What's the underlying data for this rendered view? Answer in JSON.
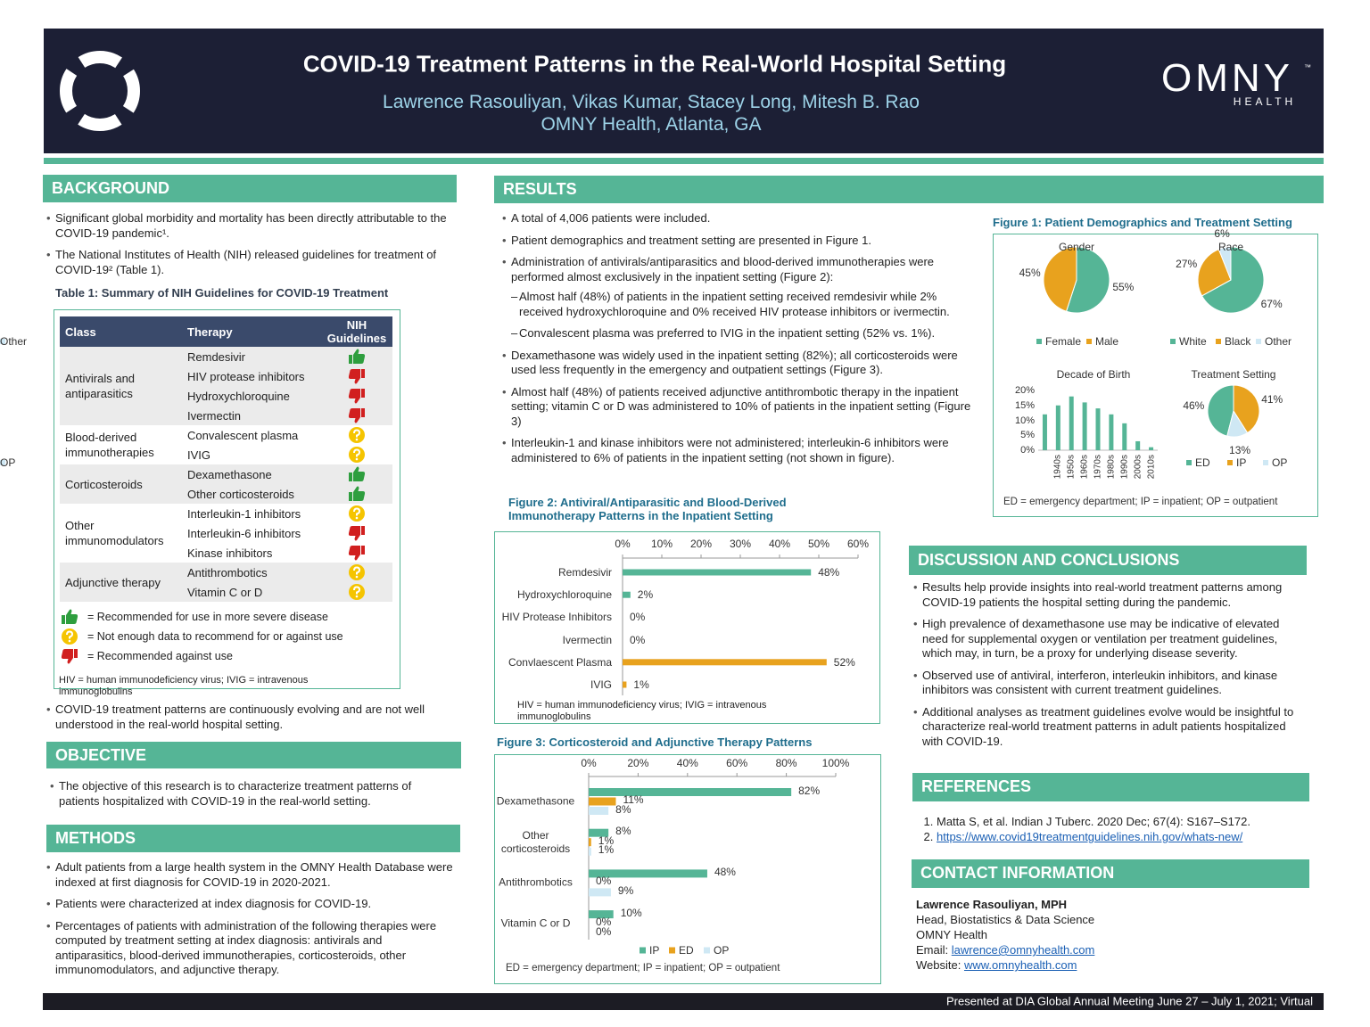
{
  "header": {
    "title": "COVID-19 Treatment Patterns in the Real-World Hospital Setting",
    "authors": "Lawrence Rasouliyan, Vikas Kumar, Stacey Long, Mitesh B. Rao",
    "affiliation": "OMNY Health, Atlanta, GA",
    "logo": {
      "name": "OMNY",
      "trademark": "™",
      "sub": "HEALTH"
    }
  },
  "background": {
    "heading": "BACKGROUND",
    "bullets": [
      "Significant global morbidity and mortality has been directly attributable to the COVID-19 pandemic¹.",
      "The National Institutes of Health (NIH) released guidelines for treatment of COVID-19² (Table 1)."
    ],
    "table_caption": "Table 1: Summary of NIH Guidelines for COVID-19 Treatment",
    "table": {
      "columns": [
        "Class",
        "Therapy",
        "NIH Guidelines"
      ],
      "groups": [
        {
          "class": "Antivirals and antiparasitics",
          "rows": [
            {
              "therapy": "Remdesivir",
              "rating": "up"
            },
            {
              "therapy": "HIV protease inhibitors",
              "rating": "down"
            },
            {
              "therapy": "Hydroxychloroquine",
              "rating": "down"
            },
            {
              "therapy": "Ivermectin",
              "rating": "down"
            }
          ]
        },
        {
          "class": "Blood-derived immunotherapies",
          "rows": [
            {
              "therapy": "Convalescent plasma",
              "rating": "question"
            },
            {
              "therapy": "IVIG",
              "rating": "question"
            }
          ]
        },
        {
          "class": "Corticosteroids",
          "rows": [
            {
              "therapy": "Dexamethasone",
              "rating": "up"
            },
            {
              "therapy": "Other corticosteroids",
              "rating": "up"
            }
          ]
        },
        {
          "class": "Other immunomodulators",
          "rows": [
            {
              "therapy": "Interleukin-1 inhibitors",
              "rating": "question"
            },
            {
              "therapy": "Interleukin-6 inhibitors",
              "rating": "down"
            },
            {
              "therapy": "Kinase inhibitors",
              "rating": "down"
            }
          ]
        },
        {
          "class": "Adjunctive therapy",
          "rows": [
            {
              "therapy": "Antithrombotics",
              "rating": "question"
            },
            {
              "therapy": "Vitamin C or D",
              "rating": "question"
            }
          ]
        }
      ]
    },
    "legend": [
      {
        "icon": "up",
        "text": "= Recommended for use in more severe disease"
      },
      {
        "icon": "question",
        "text": "= Not enough data to recommend for or against use"
      },
      {
        "icon": "down",
        "text": "= Recommended against use"
      }
    ],
    "note": "HIV = human immunodeficiency virus; IVIG = intravenous immunoglobulins",
    "bullets_after": [
      "COVID-19 treatment patterns are continuously evolving and are not well understood in the real-world hospital setting."
    ]
  },
  "objective": {
    "heading": "OBJECTIVE",
    "bullets": [
      "The objective of this research is to characterize treatment patterns of patients hospitalized with COVID-19 in the real-world setting."
    ]
  },
  "methods": {
    "heading": "METHODS",
    "bullets": [
      "Adult patients from a large health system in the OMNY Health Database were indexed at first diagnosis for COVID-19 in 2020-2021.",
      "Patients were characterized at index diagnosis for COVID-19.",
      "Percentages of patients with administration of the following therapies were computed by treatment setting at index diagnosis: antivirals and antiparasitics, blood-derived immunotherapies, corticosteroids, other immunomodulators, and adjunctive therapy."
    ]
  },
  "results": {
    "heading": "RESULTS",
    "bullets": [
      "A total of 4,006 patients were included.",
      "Patient demographics and treatment setting are presented in Figure 1.",
      {
        "text": "Administration of antivirals/antiparasitics and blood-derived immunotherapies were performed almost exclusively in the inpatient setting (Figure 2):",
        "subs": [
          "Almost half (48%) of patients in the inpatient setting received remdesivir while 2% received hydroxychloroquine and 0% received HIV protease inhibitors or ivermectin.",
          "Convalescent plasma was preferred to IVIG in the inpatient setting (52% vs. 1%)."
        ]
      },
      "Dexamethasone was widely used in the inpatient setting (82%); all corticosteroids were used less frequently in the emergency and outpatient settings (Figure 3).",
      "Almost half (48%) of patients received adjunctive antithrombotic therapy in the inpatient setting; vitamin C or D was administered to 10% of patients in the inpatient setting (Figure 3)",
      "Interleukin-1 and kinase inhibitors were not administered; interleukin-6 inhibitors were administered to 6% of patients in the inpatient setting (not shown in figure)."
    ]
  },
  "figure1": {
    "caption": "Figure 1: Patient Demographics and Treatment Setting",
    "charts": [
      {
        "type": "pie",
        "title": "Gender",
        "categories": [
          "Female",
          "Male"
        ],
        "values": [
          55,
          45
        ],
        "value_labels": [
          "55%",
          "45%"
        ],
        "colors": [
          "#55b596",
          "#e8a21e"
        ]
      },
      {
        "type": "pie",
        "title": "Race",
        "categories": [
          "White",
          "Black",
          "Other"
        ],
        "values": [
          67,
          27,
          6
        ],
        "value_labels": [
          "67%",
          "27%",
          "6%"
        ],
        "colors": [
          "#55b596",
          "#e8a21e",
          "#cfe8f4"
        ]
      },
      {
        "type": "bar",
        "title": "Decade of Birth",
        "categories": [
          null,
          "1940s",
          "1950s",
          "1960s",
          "1970s",
          "1980s",
          "1990s",
          "2000s",
          "2010s"
        ],
        "values": [
          12,
          15,
          18,
          16,
          14,
          12,
          9,
          3,
          1
        ],
        "color": "#55b596",
        "ylim": [
          0,
          20
        ],
        "yticks": [
          {
            "value": 0,
            "label": "0%"
          },
          {
            "value": 5,
            "label": "5%"
          },
          {
            "value": 10,
            "label": "10%"
          },
          {
            "value": 15,
            "label": "15%"
          },
          {
            "value": 20,
            "label": "20%"
          }
        ]
      },
      {
        "type": "pie",
        "title": "Treatment Setting",
        "categories": [
          "ED",
          "IP",
          "OP"
        ],
        "values": [
          46,
          41,
          13
        ],
        "value_labels": [
          "46%",
          "41%",
          "13%"
        ],
        "colors": [
          "#55b596",
          "#e8a21e",
          "#cfe8f4"
        ]
      }
    ],
    "note": "ED = emergency department; IP = inpatient; OP = outpatient"
  },
  "figure2": {
    "caption": "Figure 2: Antiviral/Antiparasitic and Blood-Derived Immunotherapy Patterns in the Inpatient Setting",
    "chart": {
      "type": "hbar",
      "categories": [
        "Remdesivir",
        "Hydroxychloroquine",
        "HIV Protease Inhibitors",
        "Ivermectin",
        "Convlaescent Plasma",
        "IVIG"
      ],
      "values": [
        48,
        2,
        0,
        0,
        52,
        1
      ],
      "value_labels": [
        "48%",
        "2%",
        "0%",
        "0%",
        "52%",
        "1%"
      ],
      "colors": [
        "#55b596",
        "#55b596",
        "#55b596",
        "#55b596",
        "#e8a21e",
        "#e8a21e"
      ],
      "xlim": [
        0,
        60
      ],
      "xticks": [
        {
          "value": 0,
          "label": "0%"
        },
        {
          "value": 10,
          "label": "10%"
        },
        {
          "value": 20,
          "label": "20%"
        },
        {
          "value": 30,
          "label": "30%"
        },
        {
          "value": 40,
          "label": "40%"
        },
        {
          "value": 50,
          "label": "50%"
        },
        {
          "value": 60,
          "label": "60%"
        }
      ]
    },
    "note": "HIV = human immunodeficiency virus; IVIG = intravenous immunoglobulins"
  },
  "figure3": {
    "caption": "Figure 3: Corticosteroid and Adjunctive Therapy Patterns",
    "chart": {
      "type": "grouped_hbar",
      "categories": [
        "Dexamethasone",
        "Other corticosteroids",
        "Antithrombotics",
        "Vitamin C or D"
      ],
      "series": [
        {
          "name": "IP",
          "color": "#55b596",
          "values": [
            82,
            8,
            48,
            10
          ],
          "value_labels": [
            "82%",
            "8%",
            "48%",
            "10%"
          ]
        },
        {
          "name": "ED",
          "color": "#e8a21e",
          "values": [
            11,
            1,
            0,
            0
          ],
          "value_labels": [
            "11%",
            "1%",
            "0%",
            "0%"
          ]
        },
        {
          "name": "OP",
          "color": "#cfe8f4",
          "values": [
            8,
            1,
            9,
            0
          ],
          "value_labels": [
            "8%",
            "1%",
            "9%",
            "0%"
          ]
        }
      ],
      "xlim": [
        0,
        100
      ],
      "xticks": [
        {
          "value": 0,
          "label": "0%"
        },
        {
          "value": 20,
          "label": "20%"
        },
        {
          "value": 40,
          "label": "40%"
        },
        {
          "value": 60,
          "label": "60%"
        },
        {
          "value": 80,
          "label": "80%"
        },
        {
          "value": 100,
          "label": "100%"
        }
      ]
    },
    "note": "ED = emergency department; IP = inpatient; OP = outpatient"
  },
  "discussion": {
    "heading": "DISCUSSION AND CONCLUSIONS",
    "bullets": [
      "Results help provide insights into real-world treatment patterns among COVID-19 patients the hospital setting during the pandemic.",
      "High prevalence of dexamethasone use may be indicative of elevated need for supplemental oxygen or ventilation per treatment guidelines, which may, in turn, be a proxy for underlying disease severity.",
      "Observed use of antiviral, interferon, interleukin inhibitors, and kinase inhibitors was consistent with current treatment guidelines.",
      "Additional analyses as treatment guidelines evolve would be insightful to characterize real-world treatment patterns in adult patients hospitalized with COVID-19."
    ]
  },
  "references": {
    "heading": "REFERENCES",
    "items": [
      "Matta S, et al. Indian J Tuberc. 2020 Dec; 67(4): S167–S172.",
      "https://www.covid19treatmentguidelines.nih.gov/whats-new/"
    ]
  },
  "contact": {
    "heading": "CONTACT INFORMATION",
    "name": "Lawrence Rasouliyan, MPH",
    "title": "Head, Biostatistics & Data Science",
    "org": "OMNY Health",
    "email_label": "Email:",
    "email": "lawrence@omnyhealth.com",
    "website_label": "Website:",
    "website": "www.omnyhealth.com"
  },
  "footer": "Presented at DIA Global Annual Meeting June 27 – July 1, 2021; Virtual"
}
